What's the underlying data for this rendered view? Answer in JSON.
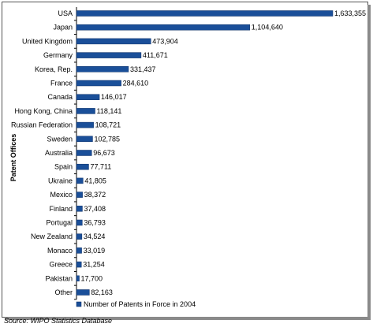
{
  "chart_data": {
    "type": "bar",
    "orientation": "horizontal",
    "categories": [
      "USA",
      "Japan",
      "United Kingdom",
      "Germany",
      "Korea, Rep.",
      "France",
      "Canada",
      "Hong Kong, China",
      "Russian Federation",
      "Sweden",
      "Australia",
      "Spain",
      "Ukraine",
      "Mexico",
      "Finland",
      "Portugal",
      "New Zealand",
      "Monaco",
      "Greece",
      "Pakistan",
      "Other"
    ],
    "series": [
      {
        "name": "Number of Patents in Force in 2004",
        "values": [
          1633355,
          1104640,
          473904,
          411671,
          331437,
          284610,
          146017,
          118141,
          108721,
          102785,
          96673,
          77711,
          41805,
          38372,
          37408,
          36793,
          34524,
          33019,
          31254,
          17700,
          82163
        ],
        "labels": [
          "1,633,355",
          "1,104,640",
          "473,904",
          "411,671",
          "331,437",
          "284,610",
          "146,017",
          "118,141",
          "108,721",
          "102,785",
          "96,673",
          "77,711",
          "41,805",
          "38,372",
          "37,408",
          "36,793",
          "34,524",
          "33,019",
          "31,254",
          "17,700",
          "82,163"
        ]
      }
    ],
    "ylabel": "Patent Offices",
    "xlabel": "",
    "title": "",
    "legend": "bottom-center",
    "grid": false,
    "bar_color": "#1a4f99"
  },
  "source": "Source: WIPO Statistics Database"
}
